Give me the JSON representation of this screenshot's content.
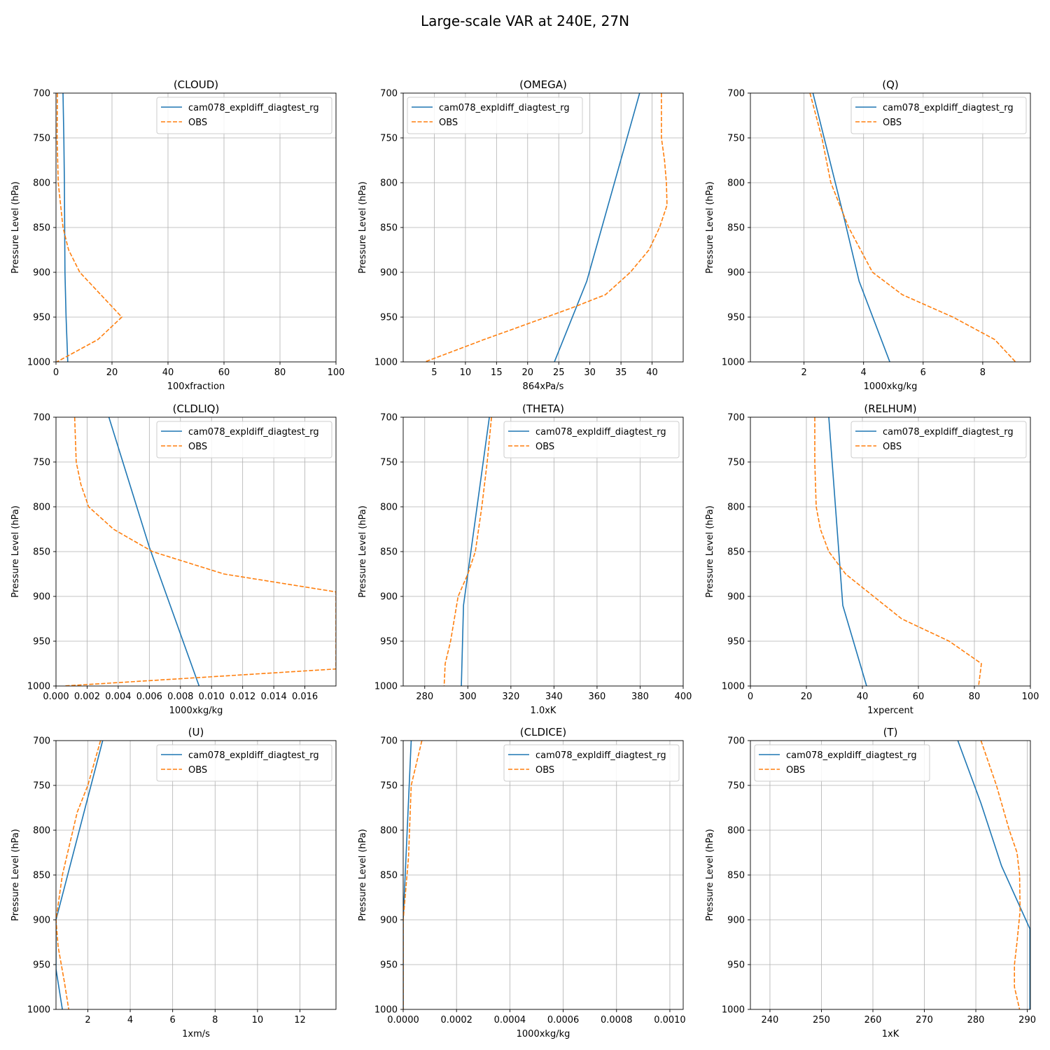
{
  "figure": {
    "title": "Large-scale VAR at 240E, 27N"
  },
  "colors": {
    "model": "#1f77b4",
    "obs": "#ff7f0e",
    "grid": "#b0b0b0",
    "axis": "#000000"
  },
  "chart_data": [
    {
      "type": "line",
      "title": "(CLOUD)",
      "xlabel": "100xfraction",
      "ylabel": "Pressure Level (hPa)",
      "xlim": [
        0,
        100
      ],
      "ylim": [
        1000,
        700
      ],
      "xticks": [
        0,
        20,
        40,
        60,
        80,
        100
      ],
      "xtick_labels": [
        "0",
        "20",
        "40",
        "60",
        "80",
        "100"
      ],
      "yticks": [
        700,
        750,
        800,
        850,
        900,
        950,
        1000
      ],
      "ytick_labels": [
        "700",
        "750",
        "800",
        "850",
        "900",
        "950",
        "1000"
      ],
      "legend": "top-right",
      "series": [
        {
          "name": "cam078_expldiff_diagtest_rg",
          "style": "solid",
          "x": [
            2.5,
            2.8,
            3.0,
            3.1,
            3.2,
            3.6,
            4.2
          ],
          "y": [
            700,
            750,
            800,
            850,
            900,
            950,
            1000
          ]
        },
        {
          "name": "OBS",
          "style": "dashed",
          "x": [
            0.5,
            0.4,
            0.8,
            2.5,
            4.5,
            8.5,
            16,
            23.5,
            15,
            0.3
          ],
          "y": [
            700,
            750,
            800,
            850,
            875,
            900,
            925,
            950,
            975,
            1000
          ]
        }
      ]
    },
    {
      "type": "line",
      "title": "(OMEGA)",
      "xlabel": "864xPa/s",
      "ylabel": "Pressure Level (hPa)",
      "xlim": [
        0,
        45
      ],
      "ylim": [
        1000,
        700
      ],
      "xticks": [
        5,
        10,
        15,
        20,
        25,
        30,
        35,
        40
      ],
      "xtick_labels": [
        "5",
        "10",
        "15",
        "20",
        "25",
        "30",
        "35",
        "40"
      ],
      "yticks": [
        700,
        750,
        800,
        850,
        900,
        950,
        1000
      ],
      "ytick_labels": [
        "700",
        "750",
        "800",
        "850",
        "900",
        "950",
        "1000"
      ],
      "legend": "top-left",
      "series": [
        {
          "name": "cam078_expldiff_diagtest_rg",
          "style": "solid",
          "x": [
            38,
            29.5,
            24.3
          ],
          "y": [
            700,
            910,
            1000
          ]
        },
        {
          "name": "OBS",
          "style": "dashed",
          "x": [
            41.5,
            41.5,
            42,
            42.3,
            42.4,
            41.2,
            39.5,
            36.5,
            32.5,
            27,
            21,
            13,
            3.5
          ],
          "y": [
            700,
            750,
            775,
            800,
            825,
            850,
            875,
            900,
            925,
            940,
            955,
            975,
            1000
          ]
        }
      ]
    },
    {
      "type": "line",
      "title": "(Q)",
      "xlabel": "1000xkg/kg",
      "ylabel": "Pressure Level (hPa)",
      "xlim": [
        0.2,
        9.6
      ],
      "ylim": [
        1000,
        700
      ],
      "xticks": [
        2,
        4,
        6,
        8
      ],
      "xtick_labels": [
        "2",
        "4",
        "6",
        "8"
      ],
      "yticks": [
        700,
        750,
        800,
        850,
        900,
        950,
        1000
      ],
      "ytick_labels": [
        "700",
        "750",
        "800",
        "850",
        "900",
        "950",
        "1000"
      ],
      "legend": "top-right",
      "series": [
        {
          "name": "cam078_expldiff_diagtest_rg",
          "style": "solid",
          "x": [
            2.3,
            3.35,
            3.85,
            4.88
          ],
          "y": [
            700,
            840,
            910,
            1000
          ]
        },
        {
          "name": "OBS",
          "style": "dashed",
          "x": [
            2.2,
            2.6,
            2.9,
            3.2,
            3.5,
            3.9,
            4.3,
            5.3,
            7.0,
            8.4,
            9.1
          ],
          "y": [
            700,
            750,
            800,
            825,
            850,
            875,
            900,
            925,
            950,
            975,
            1000
          ]
        }
      ]
    },
    {
      "type": "line",
      "title": "(CLDLIQ)",
      "xlabel": "1000xkg/kg",
      "ylabel": "Pressure Level (hPa)",
      "xlim": [
        0,
        0.018
      ],
      "ylim": [
        1000,
        700
      ],
      "xticks": [
        0,
        0.002,
        0.004,
        0.006,
        0.008,
        0.01,
        0.012,
        0.014,
        0.016
      ],
      "xtick_labels": [
        "0.000",
        "0.002",
        "0.004",
        "0.006",
        "0.008",
        "0.010",
        "0.012",
        "0.014",
        "0.016"
      ],
      "yticks": [
        700,
        750,
        800,
        850,
        900,
        950,
        1000
      ],
      "ytick_labels": [
        "700",
        "750",
        "800",
        "850",
        "900",
        "950",
        "1000"
      ],
      "legend": "top-right",
      "series": [
        {
          "name": "cam078_expldiff_diagtest_rg",
          "style": "solid",
          "x": [
            0.0034,
            0.006,
            0.0092
          ],
          "y": [
            700,
            845,
            1000
          ]
        },
        {
          "name": "OBS",
          "style": "dashed",
          "x": [
            0.0012,
            0.0013,
            0.0016,
            0.0021,
            0.0037,
            0.0062,
            0.0108,
            0.018,
            0.018,
            0.0005
          ],
          "y": [
            700,
            750,
            775,
            800,
            825,
            850,
            875,
            895,
            981,
            1000
          ]
        }
      ]
    },
    {
      "type": "line",
      "title": "(THETA)",
      "xlabel": "1.0xK",
      "ylabel": "Pressure Level (hPa)",
      "xlim": [
        270,
        400
      ],
      "ylim": [
        1000,
        700
      ],
      "xticks": [
        280,
        300,
        320,
        340,
        360,
        380,
        400
      ],
      "xtick_labels": [
        "280",
        "300",
        "320",
        "340",
        "360",
        "380",
        "400"
      ],
      "yticks": [
        700,
        750,
        800,
        850,
        900,
        950,
        1000
      ],
      "ytick_labels": [
        "700",
        "750",
        "800",
        "850",
        "900",
        "950",
        "1000"
      ],
      "legend": "top-right",
      "series": [
        {
          "name": "cam078_expldiff_diagtest_rg",
          "style": "solid",
          "x": [
            310,
            298,
            297
          ],
          "y": [
            700,
            910,
            1000
          ]
        },
        {
          "name": "OBS",
          "style": "dashed",
          "x": [
            311,
            309,
            306.5,
            303.5,
            300,
            295.5,
            292,
            289.5,
            289
          ],
          "y": [
            700,
            750,
            800,
            850,
            875,
            900,
            950,
            975,
            1000
          ]
        }
      ]
    },
    {
      "type": "line",
      "title": "(RELHUM)",
      "xlabel": "1xpercent",
      "ylabel": "Pressure Level (hPa)",
      "xlim": [
        0,
        100
      ],
      "ylim": [
        1000,
        700
      ],
      "xticks": [
        0,
        20,
        40,
        60,
        80,
        100
      ],
      "xtick_labels": [
        "0",
        "20",
        "40",
        "60",
        "80",
        "100"
      ],
      "yticks": [
        700,
        750,
        800,
        850,
        900,
        950,
        1000
      ],
      "ytick_labels": [
        "700",
        "750",
        "800",
        "850",
        "900",
        "950",
        "1000"
      ],
      "legend": "top-right",
      "series": [
        {
          "name": "cam078_expldiff_diagtest_rg",
          "style": "solid",
          "x": [
            28,
            33,
            41.5
          ],
          "y": [
            700,
            910,
            1000
          ]
        },
        {
          "name": "OBS",
          "style": "dashed",
          "x": [
            23,
            23,
            23.5,
            25,
            28,
            34,
            44,
            54,
            71,
            82.5,
            81.5
          ],
          "y": [
            700,
            750,
            800,
            825,
            850,
            875,
            900,
            925,
            950,
            975,
            1000
          ]
        }
      ]
    },
    {
      "type": "line",
      "title": "(U)",
      "xlabel": "1xm/s",
      "ylabel": "Pressure Level (hPa)",
      "xlim": [
        0.5,
        13.7
      ],
      "ylim": [
        1000,
        700
      ],
      "xticks": [
        2,
        4,
        6,
        8,
        10,
        12
      ],
      "xtick_labels": [
        "2",
        "4",
        "6",
        "8",
        "10",
        "12"
      ],
      "yticks": [
        700,
        750,
        800,
        850,
        900,
        950,
        1000
      ],
      "ytick_labels": [
        "700",
        "750",
        "800",
        "850",
        "900",
        "950",
        "1000"
      ],
      "legend": "top-right",
      "series": [
        {
          "name": "cam078_expldiff_diagtest_rg",
          "style": "solid",
          "x": [
            2.7,
            0.5,
            0.5,
            0.8
          ],
          "y": [
            700,
            900,
            955,
            1000
          ]
        },
        {
          "name": "OBS",
          "style": "dashed",
          "x": [
            2.6,
            2.0,
            1.5,
            1.1,
            0.8,
            0.5,
            0.6,
            0.9,
            1.1
          ],
          "y": [
            700,
            750,
            780,
            820,
            850,
            900,
            930,
            970,
            1000
          ]
        }
      ]
    },
    {
      "type": "line",
      "title": "(CLDICE)",
      "xlabel": "1000xkg/kg",
      "ylabel": "Pressure Level (hPa)",
      "xlim": [
        0,
        0.00105
      ],
      "ylim": [
        1000,
        700
      ],
      "xticks": [
        0,
        0.0002,
        0.0004,
        0.0006,
        0.0008,
        0.001
      ],
      "xtick_labels": [
        "0.0000",
        "0.0002",
        "0.0004",
        "0.0006",
        "0.0008",
        "0.0010"
      ],
      "yticks": [
        700,
        750,
        800,
        850,
        900,
        950,
        1000
      ],
      "ytick_labels": [
        "700",
        "750",
        "800",
        "850",
        "900",
        "950",
        "1000"
      ],
      "legend": "top-right",
      "series": [
        {
          "name": "cam078_expldiff_diagtest_rg",
          "style": "solid",
          "x": [
            3e-05,
            0.0,
            0.0
          ],
          "y": [
            700,
            900,
            1000
          ]
        },
        {
          "name": "OBS",
          "style": "dashed",
          "x": [
            7e-05,
            3e-05,
            2e-05,
            0.0,
            0.0
          ],
          "y": [
            700,
            750,
            830,
            900,
            1000
          ]
        }
      ]
    },
    {
      "type": "line",
      "title": "(T)",
      "xlabel": "1xK",
      "ylabel": "Pressure Level (hPa)",
      "xlim": [
        236.2,
        290.6
      ],
      "ylim": [
        1000,
        700
      ],
      "xticks": [
        240,
        250,
        260,
        270,
        280,
        290
      ],
      "xtick_labels": [
        "240",
        "250",
        "260",
        "270",
        "280",
        "290"
      ],
      "yticks": [
        700,
        750,
        800,
        850,
        900,
        950,
        1000
      ],
      "ytick_labels": [
        "700",
        "750",
        "800",
        "850",
        "900",
        "950",
        "1000"
      ],
      "legend": "top-left",
      "series": [
        {
          "name": "cam078_expldiff_diagtest_rg",
          "style": "solid",
          "x": [
            276.5,
            281,
            285,
            290.5,
            290.5
          ],
          "y": [
            700,
            770,
            840,
            910,
            1000
          ]
        },
        {
          "name": "OBS",
          "style": "dashed",
          "x": [
            281,
            284,
            286.5,
            288,
            288.5,
            288.6,
            288,
            287.5,
            287.5,
            288.5
          ],
          "y": [
            700,
            750,
            800,
            825,
            850,
            890,
            925,
            950,
            975,
            1000
          ]
        }
      ]
    }
  ]
}
